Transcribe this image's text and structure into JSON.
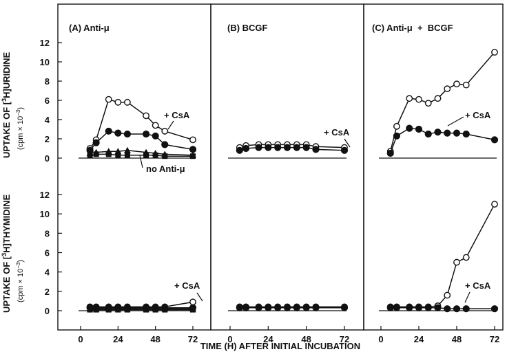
{
  "chart_data": [
    {
      "type": "line",
      "panel_label": "(A) Anti-μ",
      "y_title_main": "UPTAKE OF [",
      "y_title_sup": "3",
      "y_title_rest": "H]URIDINE",
      "y_unit": "(cpm × 10",
      "y_unit_exp": "−3",
      "y_unit_close": ")",
      "ylim": [
        0,
        12
      ],
      "xlim": [
        0,
        72
      ],
      "y_ticks": [
        "0",
        "2",
        "4",
        "6",
        "8",
        "10",
        "12"
      ],
      "series": [
        {
          "marker": "open-circle",
          "x": [
            6,
            10,
            18,
            24,
            30,
            42,
            48,
            54,
            72
          ],
          "y": [
            1.0,
            1.9,
            6.1,
            5.8,
            5.8,
            4.4,
            3.4,
            2.8,
            1.9
          ]
        },
        {
          "marker": "filled-circle",
          "x": [
            6,
            10,
            18,
            24,
            30,
            42,
            48,
            54,
            72
          ],
          "y": [
            0.8,
            1.6,
            2.8,
            2.6,
            2.5,
            2.5,
            2.3,
            1.4,
            0.9
          ]
        },
        {
          "marker": "filled-triangle",
          "x": [
            6,
            10,
            18,
            24,
            30,
            42,
            48,
            54,
            72
          ],
          "y": [
            0.5,
            0.6,
            0.7,
            0.7,
            0.8,
            0.6,
            0.5,
            0.4,
            0.3
          ]
        },
        {
          "marker": "filled-square",
          "x": [
            6,
            10,
            18,
            24,
            30,
            42,
            48,
            54,
            72
          ],
          "y": [
            0.3,
            0.4,
            0.4,
            0.3,
            0.3,
            0.3,
            0.3,
            0.2,
            0.2
          ]
        }
      ],
      "annotations": [
        "+ CsA",
        "no Anti-μ"
      ]
    },
    {
      "type": "line",
      "panel_label": "(B) BCGF",
      "ylim": [
        0,
        12
      ],
      "xlim": [
        0,
        72
      ],
      "series": [
        {
          "marker": "open-circle",
          "x": [
            6,
            10,
            18,
            24,
            30,
            36,
            42,
            48,
            54,
            72
          ],
          "y": [
            1.1,
            1.3,
            1.4,
            1.4,
            1.4,
            1.4,
            1.4,
            1.4,
            1.2,
            1.1
          ]
        },
        {
          "marker": "filled-circle",
          "x": [
            6,
            10,
            18,
            24,
            30,
            36,
            42,
            48,
            54,
            72
          ],
          "y": [
            0.8,
            1.0,
            1.1,
            1.1,
            1.1,
            1.1,
            1.1,
            1.1,
            0.9,
            0.8
          ]
        }
      ],
      "annotations": [
        "+ CsA"
      ]
    },
    {
      "type": "line",
      "panel_label": "(C) Anti-μ  +  BCGF",
      "ylim": [
        0,
        12
      ],
      "xlim": [
        0,
        72
      ],
      "series": [
        {
          "marker": "open-circle",
          "x": [
            6,
            10,
            18,
            24,
            30,
            36,
            42,
            48,
            54,
            72
          ],
          "y": [
            0.7,
            3.3,
            6.2,
            6.1,
            5.7,
            6.2,
            7.2,
            7.7,
            7.6,
            11.0
          ]
        },
        {
          "marker": "filled-circle",
          "x": [
            6,
            10,
            18,
            24,
            30,
            36,
            42,
            48,
            54,
            72
          ],
          "y": [
            0.5,
            2.3,
            3.1,
            3.0,
            2.5,
            2.7,
            2.6,
            2.6,
            2.5,
            1.9
          ]
        }
      ],
      "annotations": [
        "+ CsA"
      ]
    },
    {
      "type": "line",
      "y_title_main": "UPTAKE OF [",
      "y_title_sup": "3",
      "y_title_rest": "H]THYMIDINE",
      "y_unit": "(cpm × 10",
      "y_unit_exp": "−3",
      "y_unit_close": ")",
      "ylim": [
        0,
        12
      ],
      "xlim": [
        0,
        72
      ],
      "y_ticks": [
        "0",
        "2",
        "4",
        "6",
        "8",
        "10",
        "12"
      ],
      "series": [
        {
          "marker": "open-circle",
          "x": [
            6,
            10,
            18,
            24,
            30,
            42,
            48,
            54,
            72
          ],
          "y": [
            0.4,
            0.4,
            0.4,
            0.4,
            0.4,
            0.4,
            0.4,
            0.4,
            0.9
          ]
        },
        {
          "marker": "filled-circle",
          "x": [
            6,
            10,
            18,
            24,
            30,
            42,
            48,
            54,
            72
          ],
          "y": [
            0.3,
            0.3,
            0.3,
            0.3,
            0.3,
            0.3,
            0.3,
            0.3,
            0.3
          ]
        },
        {
          "marker": "filled-triangle",
          "x": [
            6,
            10,
            18,
            24,
            30,
            42,
            48,
            54,
            72
          ],
          "y": [
            0.2,
            0.2,
            0.2,
            0.2,
            0.2,
            0.2,
            0.2,
            0.2,
            0.2
          ]
        },
        {
          "marker": "filled-square",
          "x": [
            6,
            10,
            18,
            24,
            30,
            42,
            48,
            54,
            72
          ],
          "y": [
            0.1,
            0.1,
            0.1,
            0.1,
            0.1,
            0.1,
            0.1,
            0.1,
            0.1
          ]
        }
      ],
      "annotations": [
        "+ CsA"
      ]
    },
    {
      "type": "line",
      "ylim": [
        0,
        12
      ],
      "xlim": [
        0,
        72
      ],
      "series": [
        {
          "marker": "open-circle",
          "x": [
            6,
            10,
            18,
            24,
            30,
            36,
            42,
            48,
            54,
            72
          ],
          "y": [
            0.4,
            0.4,
            0.4,
            0.4,
            0.4,
            0.4,
            0.4,
            0.4,
            0.4,
            0.4
          ]
        },
        {
          "marker": "filled-circle",
          "x": [
            6,
            10,
            18,
            24,
            30,
            36,
            42,
            48,
            54,
            72
          ],
          "y": [
            0.3,
            0.3,
            0.3,
            0.3,
            0.3,
            0.3,
            0.3,
            0.3,
            0.3,
            0.3
          ]
        }
      ]
    },
    {
      "type": "line",
      "ylim": [
        0,
        12
      ],
      "xlim": [
        0,
        72
      ],
      "series": [
        {
          "marker": "open-circle",
          "x": [
            6,
            10,
            18,
            24,
            30,
            36,
            42,
            48,
            54,
            72
          ],
          "y": [
            0.4,
            0.4,
            0.4,
            0.4,
            0.4,
            0.5,
            1.6,
            5.0,
            5.5,
            11.0
          ]
        },
        {
          "marker": "filled-circle",
          "x": [
            6,
            10,
            18,
            24,
            30,
            36,
            42,
            48,
            54,
            72
          ],
          "y": [
            0.3,
            0.3,
            0.3,
            0.3,
            0.3,
            0.3,
            0.2,
            0.2,
            0.2,
            0.2
          ]
        }
      ],
      "annotations": [
        "+ CsA"
      ]
    }
  ],
  "x_axis": {
    "label": "TIME (H) AFTER INITIAL INCUBATION",
    "ticks": [
      "0",
      "24",
      "48",
      "72"
    ]
  }
}
